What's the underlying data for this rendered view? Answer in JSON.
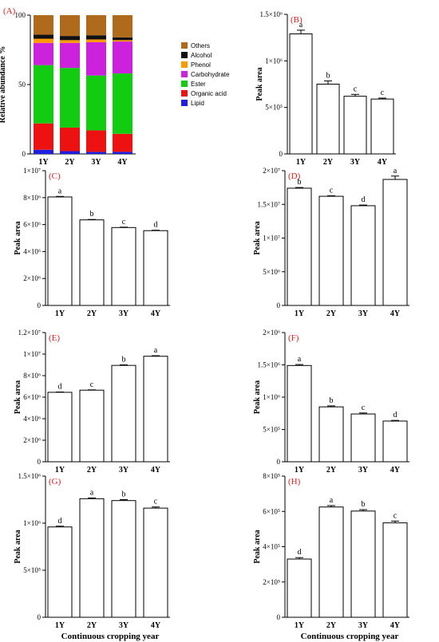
{
  "chart_data": [
    {
      "panel": "(A)",
      "type": "bar",
      "stacked": true,
      "categories": [
        "1Y",
        "2Y",
        "3Y",
        "4Y"
      ],
      "ylabel": "Relative abundance %",
      "xlabel": "",
      "ylim": [
        0,
        100
      ],
      "yticks": [
        {
          "v": 0,
          "label": "0"
        },
        {
          "v": 50,
          "label": "50"
        },
        {
          "v": 100,
          "label": "100"
        }
      ],
      "legend_placement": "right",
      "series": [
        {
          "name": "Lipid",
          "color": "#1f1fe0",
          "values": [
            3,
            2,
            1.5,
            1.5
          ]
        },
        {
          "name": "Organic acid",
          "color": "#ee1111",
          "values": [
            19,
            17,
            15.5,
            13
          ]
        },
        {
          "name": "Ester",
          "color": "#11cc11",
          "values": [
            42,
            43,
            39.5,
            43.5
          ]
        },
        {
          "name": "Carbohydrate",
          "color": "#cc22dd",
          "values": [
            16,
            18,
            24,
            23
          ]
        },
        {
          "name": "Phenol",
          "color": "#ff9900",
          "values": [
            3,
            2,
            2,
            1
          ]
        },
        {
          "name": "Alcohol",
          "color": "#111111",
          "values": [
            3,
            3,
            3,
            2
          ]
        },
        {
          "name": "Others",
          "color": "#b06a1c",
          "values": [
            14,
            15,
            14.5,
            16
          ]
        }
      ]
    },
    {
      "panel": "(B)",
      "type": "bar",
      "categories": [
        "1Y",
        "2Y",
        "3Y",
        "4Y"
      ],
      "ylabel": "Peak area",
      "xlabel": "",
      "ylim": [
        0,
        1500000
      ],
      "yticks": [
        {
          "v": 0,
          "label": "0"
        },
        {
          "v": 500000,
          "label": "5×10⁵"
        },
        {
          "v": 1000000,
          "label": "1×10⁶"
        },
        {
          "v": 1500000,
          "label": "1.5×10⁶"
        }
      ],
      "values": [
        1290000,
        750000,
        620000,
        590000
      ],
      "errors": [
        40000,
        35000,
        20000,
        10000
      ],
      "labels": [
        "a",
        "b",
        "c",
        "c"
      ]
    },
    {
      "panel": "(C)",
      "type": "bar",
      "categories": [
        "1Y",
        "2Y",
        "3Y",
        "4Y"
      ],
      "ylabel": "Peak area",
      "xlabel": "",
      "ylim": [
        0,
        10000000
      ],
      "yticks": [
        {
          "v": 0,
          "label": "0"
        },
        {
          "v": 2000000,
          "label": "2×10⁶"
        },
        {
          "v": 4000000,
          "label": "4×10⁶"
        },
        {
          "v": 6000000,
          "label": "6×10⁶"
        },
        {
          "v": 8000000,
          "label": "8×10⁶"
        },
        {
          "v": 10000000,
          "label": "1×10⁷"
        }
      ],
      "values": [
        8050000,
        6350000,
        5780000,
        5550000
      ],
      "errors": [
        40000,
        30000,
        30000,
        30000
      ],
      "labels": [
        "a",
        "b",
        "c",
        "d"
      ]
    },
    {
      "panel": "(D)",
      "type": "bar",
      "categories": [
        "1Y",
        "2Y",
        "3Y",
        "4Y"
      ],
      "ylabel": "Peak area",
      "xlabel": "",
      "ylim": [
        0,
        20000000
      ],
      "yticks": [
        {
          "v": 0,
          "label": "0"
        },
        {
          "v": 5000000,
          "label": "5×10⁶"
        },
        {
          "v": 10000000,
          "label": "1×10⁷"
        },
        {
          "v": 15000000,
          "label": "1.5×10⁷"
        },
        {
          "v": 20000000,
          "label": "2×10⁷"
        }
      ],
      "values": [
        17400000,
        16200000,
        14800000,
        18700000
      ],
      "errors": [
        100000,
        80000,
        100000,
        500000
      ],
      "labels": [
        "b",
        "c",
        "d",
        "a"
      ]
    },
    {
      "panel": "(E)",
      "type": "bar",
      "categories": [
        "1Y",
        "2Y",
        "3Y",
        "4Y"
      ],
      "ylabel": "Peak area",
      "xlabel": "",
      "ylim": [
        0,
        12000000
      ],
      "yticks": [
        {
          "v": 0,
          "label": "0"
        },
        {
          "v": 2000000,
          "label": "2×10⁶"
        },
        {
          "v": 4000000,
          "label": "4×10⁶"
        },
        {
          "v": 6000000,
          "label": "6×10⁶"
        },
        {
          "v": 8000000,
          "label": "8×10⁶"
        },
        {
          "v": 10000000,
          "label": "1×10⁷"
        },
        {
          "v": 12000000,
          "label": "1.2×10⁷"
        }
      ],
      "values": [
        6450000,
        6650000,
        8950000,
        9800000
      ],
      "errors": [
        30000,
        30000,
        50000,
        50000
      ],
      "labels": [
        "d",
        "c",
        "b",
        "a"
      ]
    },
    {
      "panel": "(F)",
      "type": "bar",
      "categories": [
        "1Y",
        "2Y",
        "3Y",
        "4Y"
      ],
      "ylabel": "Peak area",
      "xlabel": "",
      "ylim": [
        0,
        2000000
      ],
      "yticks": [
        {
          "v": 0,
          "label": "0"
        },
        {
          "v": 500000,
          "label": "5×10⁵"
        },
        {
          "v": 1000000,
          "label": "1×10⁶"
        },
        {
          "v": 1500000,
          "label": "1.5×10⁶"
        },
        {
          "v": 2000000,
          "label": "2×10⁶"
        }
      ],
      "values": [
        1490000,
        850000,
        740000,
        630000
      ],
      "errors": [
        15000,
        15000,
        15000,
        10000
      ],
      "labels": [
        "a",
        "b",
        "c",
        "d"
      ]
    },
    {
      "panel": "(G)",
      "type": "bar",
      "categories": [
        "1Y",
        "2Y",
        "3Y",
        "4Y"
      ],
      "ylabel": "Peak area",
      "xlabel": "Continuous cropping year",
      "ylim": [
        0,
        1500000
      ],
      "yticks": [
        {
          "v": 0,
          "label": "0"
        },
        {
          "v": 500000,
          "label": "5×10⁵"
        },
        {
          "v": 1000000,
          "label": "1×10⁶"
        },
        {
          "v": 1500000,
          "label": "1.5×10⁶"
        }
      ],
      "values": [
        960000,
        1260000,
        1240000,
        1160000
      ],
      "errors": [
        8000,
        8000,
        10000,
        12000
      ],
      "labels": [
        "d",
        "a",
        "b",
        "c"
      ]
    },
    {
      "panel": "(H)",
      "type": "bar",
      "categories": [
        "1Y",
        "2Y",
        "3Y",
        "4Y"
      ],
      "ylabel": "Peak area",
      "xlabel": "Continuous cropping year",
      "ylim": [
        0,
        800000
      ],
      "yticks": [
        {
          "v": 0,
          "label": "0"
        },
        {
          "v": 200000,
          "label": "2×10⁵"
        },
        {
          "v": 400000,
          "label": "4×10⁵"
        },
        {
          "v": 600000,
          "label": "6×10⁵"
        },
        {
          "v": 800000,
          "label": "8×10⁵"
        }
      ],
      "values": [
        330000,
        625000,
        602000,
        535000
      ],
      "errors": [
        8000,
        8000,
        8000,
        10000
      ],
      "labels": [
        "d",
        "a",
        "b",
        "c"
      ]
    }
  ]
}
